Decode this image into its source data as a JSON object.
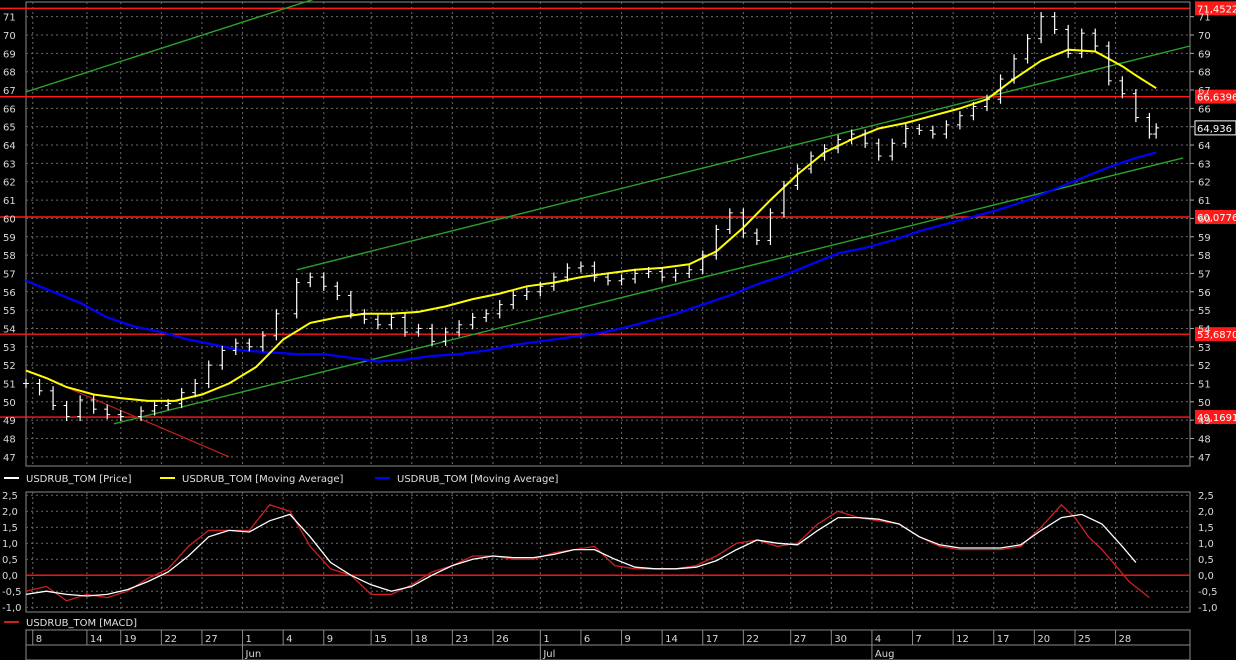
{
  "chart_data": [
    {
      "type": "line",
      "panel": "price",
      "ylim": [
        46.5,
        71.8
      ],
      "y_ticks": [
        "47",
        "48",
        "49",
        "50",
        "51",
        "52",
        "53",
        "54",
        "55",
        "56",
        "57",
        "58",
        "59",
        "60",
        "61",
        "62",
        "63",
        "64",
        "65",
        "66",
        "67",
        "68",
        "69",
        "70",
        "71"
      ],
      "levels": [
        {
          "value": 71.4522,
          "label": "71,4522"
        },
        {
          "value": 66.6396,
          "label": "66,6396"
        },
        {
          "value": 60.0776,
          "label": "60,0776"
        },
        {
          "value": 53.687,
          "label": "53,6870"
        },
        {
          "value": 49.1691,
          "label": "49,1691"
        }
      ],
      "last_price": {
        "value": 64.936,
        "label": "64,936"
      },
      "legend": [
        {
          "name": "USDRUB_TOM [Price]",
          "color": "#ffffff"
        },
        {
          "name": "USDRUB_TOM [Moving Average]",
          "color": "#ffff00"
        },
        {
          "name": "USDRUB_TOM [Moving Average]",
          "color": "#0000ff"
        }
      ],
      "series": [
        {
          "name": "USDRUB_TOM [Price]",
          "color": "#ffffff",
          "x": [
            0,
            2,
            4,
            6,
            8,
            10,
            12,
            14,
            17,
            19,
            21,
            23,
            25,
            27,
            29,
            31,
            33,
            35,
            37,
            40,
            42,
            44,
            46,
            48,
            50,
            52,
            54,
            56,
            58,
            60,
            62,
            64,
            66,
            68,
            70,
            72,
            74,
            76,
            78,
            80,
            82,
            84,
            86,
            88,
            90,
            92,
            94,
            96,
            98,
            100,
            102,
            104,
            106,
            108,
            110,
            112,
            114,
            116,
            118,
            120,
            122,
            124,
            126,
            128,
            130,
            132,
            134,
            136,
            138,
            140,
            142,
            144,
            146,
            148,
            150,
            152,
            154,
            156,
            158,
            160,
            162,
            164,
            166,
            167
          ],
          "values": [
            51,
            50.6,
            49.8,
            49.2,
            50.1,
            49.6,
            49.3,
            49.2,
            49.5,
            49.8,
            49.9,
            50.5,
            51,
            52,
            52.8,
            53.2,
            53,
            53.6,
            54.8,
            56.5,
            56.8,
            56.3,
            55.8,
            54.8,
            54.5,
            54.2,
            54.6,
            53.8,
            54,
            53.3,
            53.8,
            54.2,
            54.6,
            54.8,
            55.3,
            55.8,
            56,
            56.3,
            56.8,
            57.3,
            57.4,
            56.8,
            56.6,
            56.7,
            57,
            57.1,
            56.8,
            57,
            57.2,
            58,
            59.4,
            60.3,
            59.2,
            58.8,
            60.3,
            61.8,
            62.7,
            63.4,
            63.8,
            64.3,
            64.6,
            64.1,
            63.4,
            64.1,
            64.9,
            64.8,
            64.6,
            65.1,
            65.6,
            66.1,
            66.5,
            67.6,
            68.7,
            69.8,
            71,
            70.3,
            69,
            70.1,
            69.4,
            67.5,
            66.8,
            65.5,
            64.6,
            64.936
          ]
        },
        {
          "name": "USDRUB_TOM [Moving Average]",
          "color": "#ffff00",
          "x": [
            0,
            3,
            6,
            10,
            14,
            18,
            22,
            26,
            30,
            34,
            38,
            42,
            46,
            50,
            54,
            58,
            62,
            66,
            70,
            74,
            78,
            82,
            86,
            90,
            94,
            98,
            102,
            106,
            110,
            114,
            118,
            122,
            126,
            130,
            134,
            138,
            142,
            146,
            150,
            154,
            158,
            162,
            164,
            167
          ],
          "values": [
            51.7,
            51.3,
            50.8,
            50.4,
            50.2,
            50.05,
            50.05,
            50.4,
            51,
            51.9,
            53.4,
            54.3,
            54.6,
            54.8,
            54.8,
            54.9,
            55.2,
            55.6,
            55.9,
            56.3,
            56.5,
            56.8,
            57,
            57.2,
            57.3,
            57.5,
            58.2,
            59.5,
            61,
            62.4,
            63.6,
            64.3,
            64.9,
            65.2,
            65.6,
            66,
            66.5,
            67.6,
            68.6,
            69.2,
            69.1,
            68.3,
            67.8,
            67.1
          ]
        },
        {
          "name": "USDRUB_TOM [Moving Average]",
          "color": "#0000ff",
          "x": [
            0,
            4,
            8,
            12,
            16,
            20,
            24,
            28,
            32,
            36,
            40,
            44,
            48,
            52,
            56,
            60,
            64,
            68,
            72,
            76,
            80,
            84,
            88,
            92,
            96,
            100,
            104,
            108,
            112,
            116,
            120,
            124,
            128,
            132,
            136,
            140,
            144,
            148,
            152,
            156,
            160,
            164,
            167
          ],
          "values": [
            56.6,
            56,
            55.4,
            54.6,
            54.1,
            53.8,
            53.4,
            53.1,
            52.8,
            52.7,
            52.6,
            52.6,
            52.4,
            52.2,
            52.3,
            52.5,
            52.6,
            52.8,
            53.1,
            53.3,
            53.5,
            53.7,
            54,
            54.4,
            54.8,
            55.3,
            55.8,
            56.4,
            56.9,
            57.5,
            58.1,
            58.4,
            58.8,
            59.3,
            59.7,
            60.1,
            60.5,
            61,
            61.6,
            62.2,
            62.8,
            63.3,
            63.6
          ]
        },
        {
          "name": "",
          "color": "#2aa02a",
          "x": [
            0,
            48
          ],
          "values": [
            66.9,
            72.6
          ]
        },
        {
          "name": "",
          "color": "#2aa02a",
          "x": [
            40,
            172
          ],
          "values": [
            57.2,
            69.4
          ]
        },
        {
          "name": "",
          "color": "#2aa02a",
          "x": [
            13,
            171
          ],
          "values": [
            48.8,
            63.3
          ]
        },
        {
          "name": "",
          "color": "#c0201a",
          "x": [
            4,
            30
          ],
          "values": [
            51.1,
            47
          ]
        }
      ]
    },
    {
      "type": "line",
      "panel": "macd",
      "ylim": [
        -1.15,
        2.6
      ],
      "y_ticks": [
        "2,5",
        "2,0",
        "1,5",
        "1,0",
        "0,5",
        "0,0",
        "-0,5",
        "-1,0"
      ],
      "y_tick_values": [
        2.5,
        2.0,
        1.5,
        1.0,
        0.5,
        0.0,
        -0.5,
        -1.0
      ],
      "zero_line": 0,
      "legend": [
        {
          "name": "USDRUB_TOM [MACD]",
          "color": "#cc2020"
        }
      ],
      "x_ticks": [
        "8",
        "14",
        "19",
        "22",
        "27",
        "1",
        "4",
        "9",
        "15",
        "18",
        "23",
        "26",
        "1",
        "6",
        "9",
        "14",
        "17",
        "22",
        "27",
        "30",
        "4",
        "7",
        "12",
        "17",
        "20",
        "25",
        "28"
      ],
      "x_tick_pos": [
        1,
        9,
        14,
        20,
        26,
        32,
        38,
        44,
        51,
        57,
        63,
        69,
        76,
        82,
        88,
        94,
        100,
        106,
        113,
        119,
        125,
        131,
        137,
        143,
        149,
        155,
        161
      ],
      "months": [
        "Jun",
        "Jul",
        "Aug"
      ],
      "month_pos": [
        32,
        76,
        125
      ],
      "series": [
        {
          "name": "USDRUB_TOM [MACD]",
          "color": "#cc2020",
          "x": [
            0,
            3,
            6,
            9,
            12,
            15,
            18,
            21,
            24,
            27,
            30,
            33,
            36,
            39,
            42,
            45,
            48,
            51,
            54,
            57,
            60,
            63,
            66,
            69,
            72,
            75,
            78,
            81,
            84,
            87,
            90,
            93,
            96,
            99,
            102,
            105,
            108,
            111,
            114,
            117,
            120,
            123,
            126,
            129,
            132,
            135,
            138,
            141,
            144,
            147,
            150,
            153,
            155,
            157,
            159,
            161,
            163,
            166
          ],
          "values": [
            -0.5,
            -0.35,
            -0.8,
            -0.6,
            -0.7,
            -0.5,
            -0.1,
            0.2,
            0.9,
            1.4,
            1.4,
            1.4,
            2.2,
            2,
            0.9,
            0.2,
            0,
            -0.6,
            -0.6,
            -0.3,
            0.1,
            0.3,
            0.6,
            0.6,
            0.5,
            0.5,
            0.7,
            0.8,
            0.9,
            0.3,
            0.2,
            0.2,
            0.2,
            0.3,
            0.6,
            1,
            1.1,
            0.9,
            1,
            1.6,
            2,
            1.8,
            1.7,
            1.6,
            1.2,
            0.9,
            0.8,
            0.8,
            0.8,
            0.9,
            1.5,
            2.2,
            1.8,
            1.2,
            0.8,
            0.3,
            -0.2,
            -0.7
          ]
        },
        {
          "name": "",
          "color": "#ffffff",
          "x": [
            0,
            3,
            6,
            9,
            12,
            15,
            18,
            21,
            24,
            27,
            30,
            33,
            36,
            39,
            42,
            45,
            48,
            51,
            54,
            57,
            60,
            63,
            66,
            69,
            72,
            75,
            78,
            81,
            84,
            87,
            90,
            93,
            96,
            99,
            102,
            105,
            108,
            111,
            114,
            117,
            120,
            123,
            126,
            129,
            132,
            135,
            138,
            141,
            144,
            147,
            150,
            153,
            156,
            159,
            162,
            164
          ],
          "values": [
            -0.6,
            -0.5,
            -0.6,
            -0.65,
            -0.6,
            -0.45,
            -0.2,
            0.1,
            0.6,
            1.2,
            1.4,
            1.35,
            1.7,
            1.9,
            1.2,
            0.4,
            0,
            -0.3,
            -0.5,
            -0.35,
            0,
            0.3,
            0.5,
            0.6,
            0.55,
            0.55,
            0.65,
            0.8,
            0.8,
            0.5,
            0.25,
            0.2,
            0.2,
            0.25,
            0.45,
            0.8,
            1.1,
            1,
            0.95,
            1.4,
            1.8,
            1.8,
            1.75,
            1.6,
            1.2,
            0.95,
            0.85,
            0.85,
            0.85,
            0.95,
            1.4,
            1.8,
            1.9,
            1.6,
            0.9,
            0.4
          ]
        }
      ]
    }
  ]
}
